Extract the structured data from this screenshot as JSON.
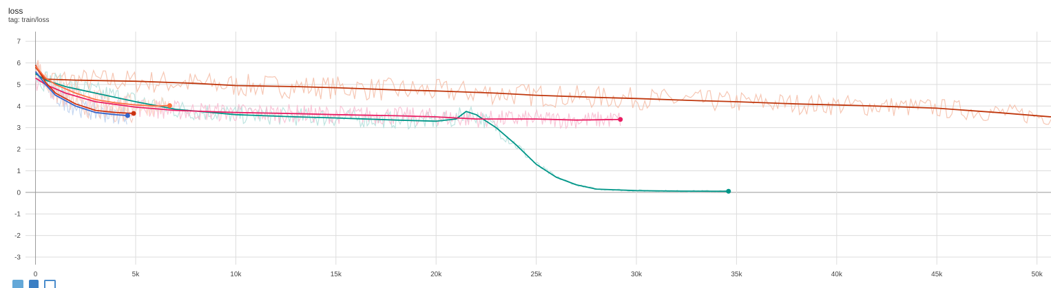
{
  "card": {
    "title": "loss",
    "tag": "tag: train/loss"
  },
  "toolbar": {
    "icons": [
      "fit-domain-icon",
      "log-scale-icon",
      "zoom-icon"
    ]
  },
  "chart_data": {
    "type": "line",
    "title": "loss",
    "xlabel": "",
    "ylabel": "",
    "xlim": [
      -500,
      50700
    ],
    "ylim": [
      -3.35,
      7.45
    ],
    "x_ticks": [
      0,
      5000,
      10000,
      15000,
      20000,
      25000,
      30000,
      35000,
      40000,
      45000,
      50000
    ],
    "x_tick_labels": [
      "0",
      "5k",
      "10k",
      "15k",
      "20k",
      "25k",
      "30k",
      "35k",
      "40k",
      "45k",
      "50k"
    ],
    "y_ticks": [
      -3,
      -2,
      -1,
      0,
      1,
      2,
      3,
      4,
      5,
      6,
      7
    ],
    "grid": true,
    "legend": "none",
    "series": [
      {
        "color": "#bf360c",
        "raw_color": "#f4bca6",
        "x": [
          0,
          500,
          2000,
          5000,
          8000,
          10000,
          13000,
          15000,
          18000,
          20000,
          23000,
          25000,
          28000,
          30000,
          33000,
          35000,
          38000,
          40000,
          42000,
          45000,
          48000,
          50700
        ],
        "y": [
          5.8,
          5.25,
          5.2,
          5.15,
          5.05,
          4.95,
          4.9,
          4.85,
          4.75,
          4.7,
          4.6,
          4.5,
          4.4,
          4.35,
          4.25,
          4.2,
          4.1,
          4.05,
          4.0,
          3.9,
          3.7,
          3.5
        ]
      },
      {
        "color": "#009688",
        "raw_color": "#b2dfdb",
        "x": [
          0,
          500,
          1500,
          3000,
          5000,
          7000,
          10000,
          13000,
          15000,
          18000,
          20000,
          21000,
          21500,
          22000,
          23000,
          24000,
          25000,
          26000,
          27000,
          28000,
          30000,
          32000,
          34600
        ],
        "y": [
          5.5,
          5.2,
          4.9,
          4.6,
          4.2,
          3.85,
          3.6,
          3.5,
          3.45,
          3.35,
          3.3,
          3.4,
          3.75,
          3.6,
          3.0,
          2.2,
          1.3,
          0.7,
          0.35,
          0.15,
          0.08,
          0.06,
          0.05
        ]
      },
      {
        "color": "#e91e63",
        "raw_color": "#f8bbd0",
        "x": [
          0,
          500,
          1500,
          3000,
          5000,
          7000,
          10000,
          13000,
          15000,
          18000,
          20000,
          22000,
          25000,
          27000,
          29200
        ],
        "y": [
          5.3,
          5.0,
          4.6,
          4.2,
          3.95,
          3.8,
          3.7,
          3.65,
          3.6,
          3.55,
          3.5,
          3.4,
          3.4,
          3.35,
          3.38
        ]
      },
      {
        "color": "#3366cc",
        "raw_color": "#bbd0ee",
        "x": [
          0,
          500,
          1000,
          2000,
          3000,
          4000,
          4600
        ],
        "y": [
          5.6,
          5.0,
          4.5,
          4.0,
          3.7,
          3.6,
          3.56
        ]
      },
      {
        "color": "#cc3311",
        "raw_color": "#f5c6b8",
        "x": [
          0,
          500,
          1000,
          2000,
          3000,
          4000,
          4900
        ],
        "y": [
          5.9,
          5.1,
          4.6,
          4.1,
          3.8,
          3.7,
          3.66
        ]
      },
      {
        "color": "#ff7043",
        "raw_color": "#ffd8c6",
        "x": [
          0,
          500,
          1000,
          2000,
          3000,
          4000,
          5000,
          6000,
          6700
        ],
        "y": [
          5.85,
          5.3,
          5.0,
          4.6,
          4.3,
          4.15,
          4.05,
          4.0,
          4.02
        ]
      }
    ]
  }
}
